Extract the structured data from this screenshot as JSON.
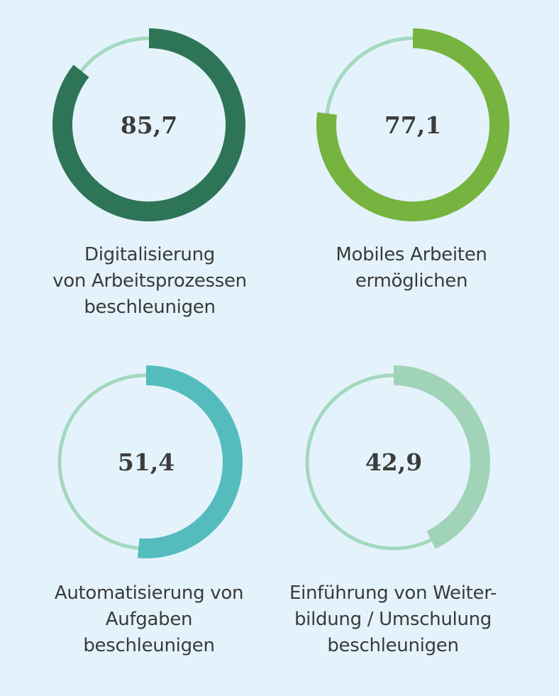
{
  "chart_data": {
    "type": "pie",
    "max": 100,
    "items": [
      {
        "value_label": "85,7",
        "value": 85.7,
        "label_lines": [
          "Digitalisierung",
          "von Arbeitsprozessen",
          "beschleunigen"
        ],
        "color": "#2e7558",
        "track_color": "#a3d8be"
      },
      {
        "value_label": "77,1",
        "value": 77.1,
        "label_lines": [
          "Mobiles Arbeiten",
          "ermöglichen"
        ],
        "color": "#76b43f",
        "track_color": "#a3d8be"
      },
      {
        "value_label": "51,4",
        "value": 51.4,
        "label_lines": [
          "Automatisierung von",
          "Aufgaben",
          "beschleunigen"
        ],
        "color": "#55bcbd",
        "track_color": "#a3d8be"
      },
      {
        "value_label": "42,9",
        "value": 42.9,
        "label_lines": [
          "Einführung von Weiter-",
          "bildung / Umschulung",
          "beschleunigen"
        ],
        "color": "#a0d3b7",
        "track_color": "#a3d8be"
      }
    ]
  }
}
